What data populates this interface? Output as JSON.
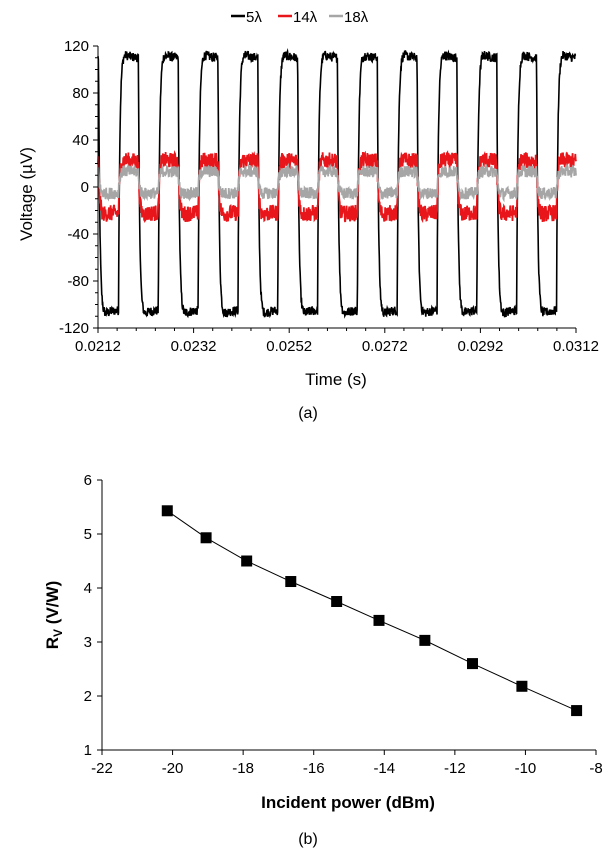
{
  "chart_data": [
    {
      "type": "line",
      "panel_label": "(a)",
      "xlabel": "Time (s)",
      "ylabel": "Voltage (µV)",
      "xlim": [
        0.0212,
        0.0312
      ],
      "ylim": [
        -120,
        120
      ],
      "xticks": [
        "0.0212",
        "0.0232",
        "0.0252",
        "0.0272",
        "0.0292",
        "0.0312"
      ],
      "yticks": [
        "120",
        "80",
        "40",
        "0",
        "-40",
        "-80",
        "-120"
      ],
      "grid": false,
      "legend_position": "top-center",
      "square_wave": {
        "period_s": 0.000833,
        "first_rise_s": 0.02163,
        "duty": 0.5
      },
      "series": [
        {
          "name": "5λ",
          "color": "#000000",
          "high": 110,
          "low": -105,
          "overshoot": 18,
          "noise": 4
        },
        {
          "name": "14λ",
          "color": "#e8161b",
          "high": 22,
          "low": -22,
          "overshoot": 6,
          "noise": 7
        },
        {
          "name": "18λ",
          "color": "#a6a6a6",
          "high": 13,
          "low": -5,
          "overshoot": 3,
          "noise": 5
        }
      ]
    },
    {
      "type": "scatter",
      "panel_label": "(b)",
      "xlabel": "Incident power (dBm)",
      "ylabel_main": "R",
      "ylabel_sub": "V",
      "ylabel_units": " (V/W)",
      "xlim": [
        -22,
        -8
      ],
      "ylim": [
        1,
        6
      ],
      "xticks": [
        "-22",
        "-20",
        "-18",
        "-16",
        "-14",
        "-12",
        "-10",
        "-8"
      ],
      "yticks": [
        "6",
        "5",
        "4",
        "3",
        "2",
        "1"
      ],
      "grid": false,
      "marker": "square",
      "color": "#000000",
      "x": [
        -20.15,
        -19.05,
        -17.9,
        -16.65,
        -15.35,
        -14.15,
        -12.85,
        -11.5,
        -10.1,
        -8.55
      ],
      "y": [
        5.43,
        4.93,
        4.5,
        4.12,
        3.75,
        3.4,
        3.03,
        2.6,
        2.18,
        1.73
      ]
    }
  ]
}
